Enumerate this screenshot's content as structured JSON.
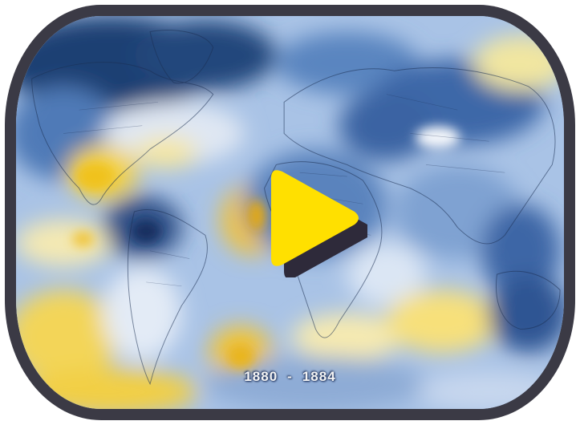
{
  "video": {
    "caption_start": "1880",
    "caption_separator": "-",
    "caption_end": "1884",
    "play_icon": "play-triangle-icon"
  },
  "colors": {
    "frame": "#3b3a45",
    "play_fill": "#ffe000",
    "play_shadow": "#2e2a3a",
    "cool_dark": "#1f3f73",
    "cool_mid": "#4d79b8",
    "cool_light": "#c9d9ef",
    "warm": "#f5d64a"
  }
}
